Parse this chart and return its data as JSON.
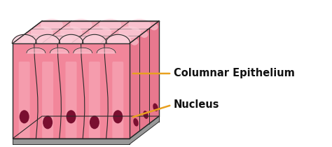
{
  "bg_color": "#ffffff",
  "cell_fill_front": "#f2869a",
  "cell_fill_top": "#f5a8b8",
  "cell_fill_top_light": "#fcd0da",
  "cell_fill_side": "#e8788e",
  "cell_fill_side_light": "#f09aaa",
  "cell_outline": "#2a2a2a",
  "nucleus_color": "#7a0f30",
  "base_color": "#999999",
  "base_top_color": "#bbbbbb",
  "arrow_color": "#e8a020",
  "label_color": "#111111",
  "label1": "Columnar Epithelium",
  "label2": "Nucleus",
  "label_fontsize": 10.5,
  "label_fontweight": "bold"
}
